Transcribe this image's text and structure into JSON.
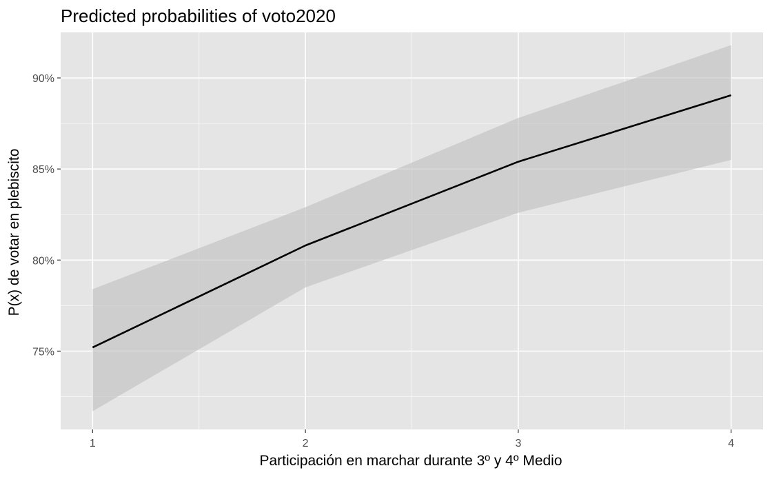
{
  "chart_data": {
    "type": "line",
    "title": "Predicted probabilities of voto2020",
    "xlabel": "Participación en marchar durante 3º y 4º Medio",
    "ylabel": "P(x) de votar en plebiscito",
    "x": [
      1,
      2,
      3,
      4
    ],
    "x_tick_labels": [
      "1",
      "2",
      "3",
      "4"
    ],
    "xlim": [
      0.85,
      4.15
    ],
    "y_ticks": [
      75,
      80,
      85,
      90
    ],
    "y_tick_labels": [
      "75%",
      "80%",
      "85%",
      "90%"
    ],
    "ylim": [
      70.7,
      92.5
    ],
    "series": [
      {
        "values": [
          75.2,
          80.8,
          85.4,
          89.05
        ],
        "ci_lower": [
          71.7,
          78.5,
          82.6,
          85.5
        ],
        "ci_upper": [
          78.4,
          82.9,
          87.8,
          91.8
        ]
      }
    ],
    "grid": true,
    "legend": "none"
  },
  "colors": {
    "panel_background": "#e5e5e5",
    "grid_major": "#ffffff",
    "ribbon": "#bebebe",
    "line": "#000000"
  }
}
